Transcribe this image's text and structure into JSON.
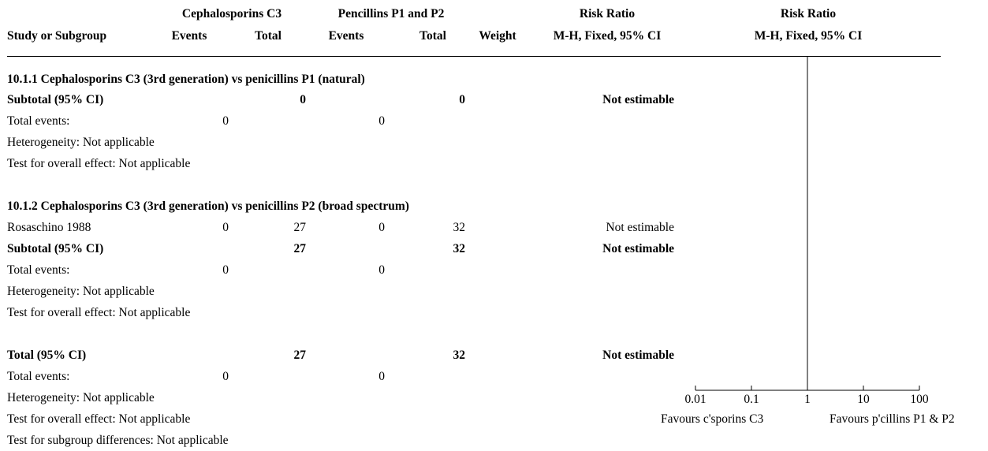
{
  "header": {
    "group1": "Cephalosporins C3",
    "group2": "Pencillins P1 and P2",
    "rr_left": "Risk Ratio",
    "rr_right": "Risk Ratio",
    "study": "Study or Subgroup",
    "events1": "Events",
    "total1": "Total",
    "events2": "Events",
    "total2": "Total",
    "weight": "Weight",
    "method_left": "M-H, Fixed, 95% CI",
    "method_right": "M-H, Fixed, 95% CI"
  },
  "sub1": {
    "title": "10.1.1 Cephalosporins C3 (3rd generation) vs penicillins P1 (natural)",
    "subtotal_label": "Subtotal (95% CI)",
    "subtotal_t1": "0",
    "subtotal_t2": "0",
    "subtotal_est": "Not estimable",
    "events_label": "Total events:",
    "events1": "0",
    "events2": "0",
    "hetero": "Heterogeneity: Not applicable",
    "effect": "Test for overall effect: Not applicable"
  },
  "sub2": {
    "title": "10.1.2 Cephalosporins C3 (3rd generation) vs penicillins P2 (broad spectrum)",
    "study_name": "Rosaschino 1988",
    "study_e1": "0",
    "study_t1": "27",
    "study_e2": "0",
    "study_t2": "32",
    "study_est": "Not estimable",
    "subtotal_label": "Subtotal (95% CI)",
    "subtotal_t1": "27",
    "subtotal_t2": "32",
    "subtotal_est": "Not estimable",
    "events_label": "Total events:",
    "events1": "0",
    "events2": "0",
    "hetero": "Heterogeneity: Not applicable",
    "effect": "Test for overall effect: Not applicable"
  },
  "total": {
    "label": "Total (95% CI)",
    "t1": "27",
    "t2": "32",
    "est": "Not estimable",
    "events_label": "Total events:",
    "events1": "0",
    "events2": "0",
    "hetero": "Heterogeneity: Not applicable",
    "effect": "Test for overall effect: Not applicable",
    "subgroup": "Test for subgroup differences: Not applicable"
  },
  "chart_data": {
    "type": "scatter",
    "xscale": "log",
    "xlim": [
      0.01,
      100
    ],
    "ticks": [
      0.01,
      0.1,
      1,
      10,
      100
    ],
    "tick_labels": [
      "0.01",
      "0.1",
      "1",
      "10",
      "100"
    ],
    "null_line": 1,
    "favours_left": "Favours c'sporins C3",
    "favours_right": "Favours p'cillins P1 & P2",
    "points": []
  }
}
